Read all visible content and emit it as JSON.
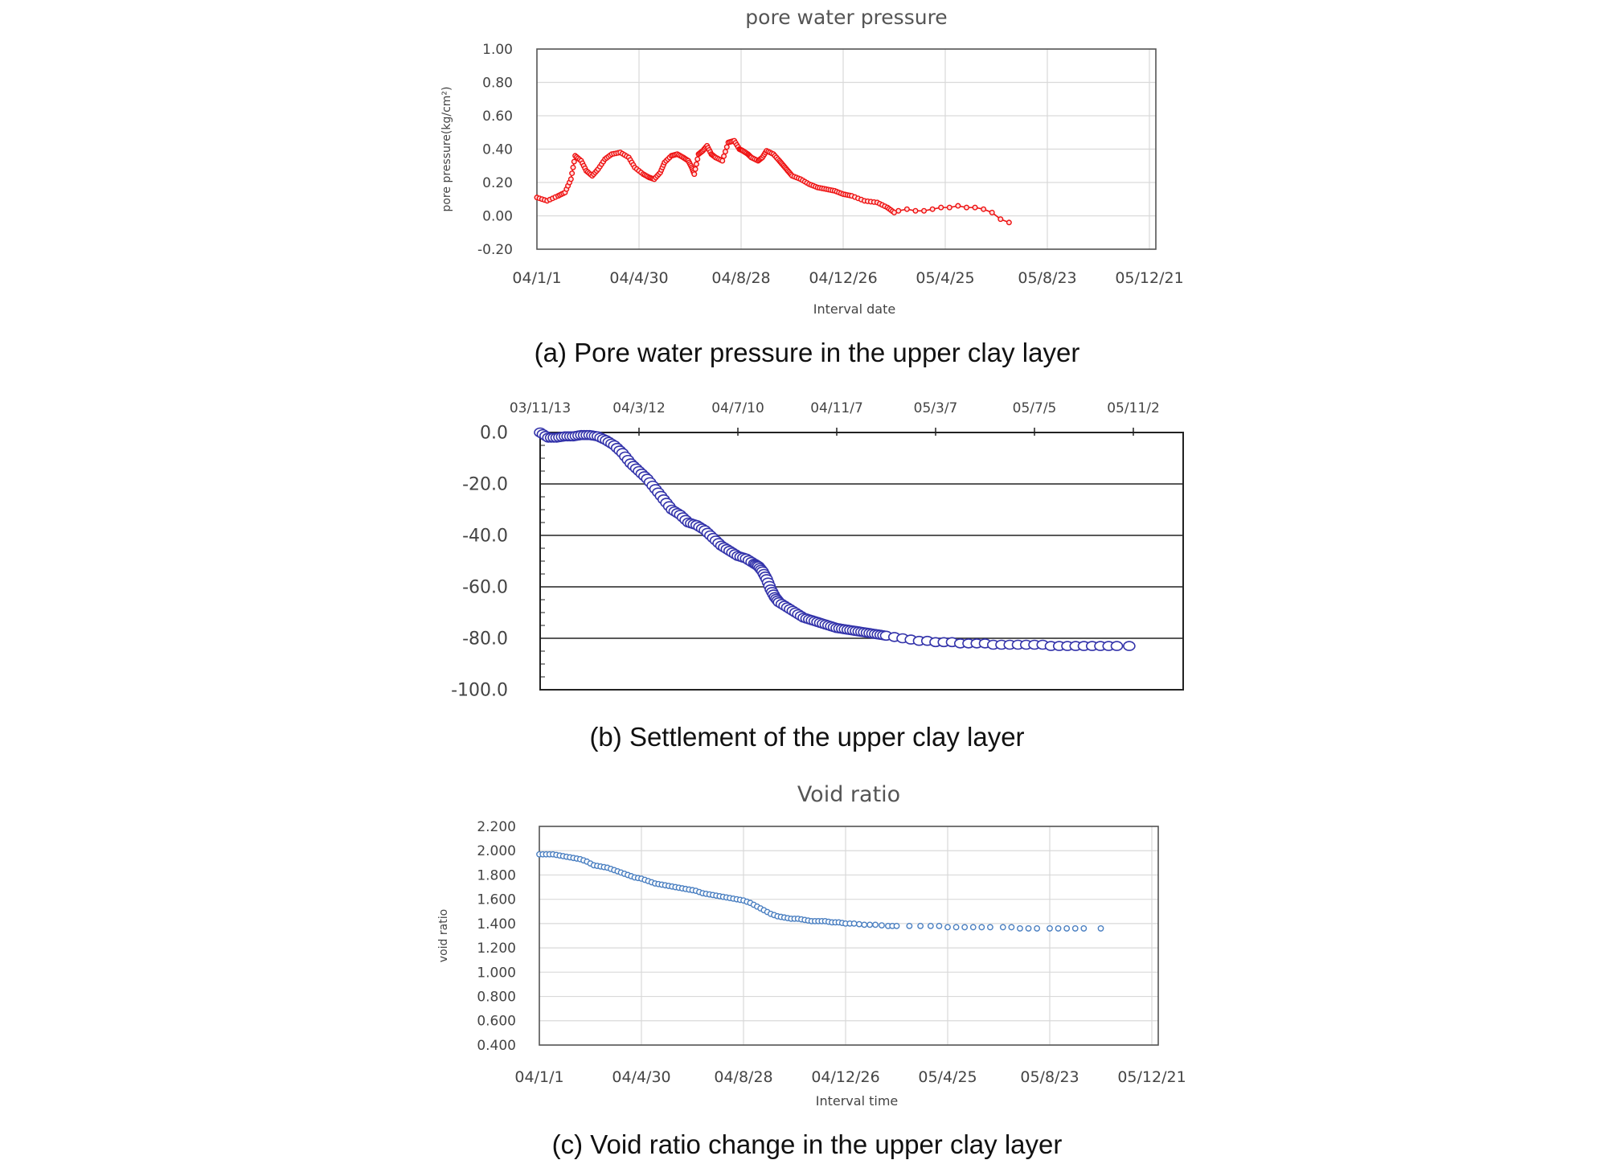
{
  "chart_data": [
    {
      "type": "scatter",
      "title": "pore water pressure",
      "xlabel": "Interval date",
      "ylabel": "pore pressure(kg/cm²)",
      "caption": "(a) Pore water pressure in the upper clay layer",
      "x_ticks": [
        "04/1/1",
        "04/4/30",
        "04/8/28",
        "04/12/26",
        "05/4/25",
        "05/8/23",
        "05/12/21"
      ],
      "y_ticks": [
        "1.00",
        "0.80",
        "0.60",
        "0.40",
        "0.20",
        "0.00",
        "-0.20"
      ],
      "ylim": [
        -0.2,
        1.0
      ],
      "xlim_days": [
        0,
        720
      ],
      "color": "#ee1111",
      "series": [
        {
          "name": "pore water pressure",
          "x_days": [
            0,
            12,
            25,
            33,
            40,
            45,
            52,
            58,
            65,
            72,
            80,
            88,
            98,
            108,
            115,
            125,
            132,
            138,
            145,
            150,
            158,
            165,
            172,
            178,
            182,
            185,
            190,
            195,
            200,
            205,
            210,
            218,
            225,
            232,
            238,
            242,
            248,
            252,
            260,
            265,
            270,
            278,
            285,
            290,
            295,
            300,
            310,
            320,
            330,
            340,
            350,
            360,
            370,
            385,
            400,
            412,
            420,
            425,
            435,
            445,
            455,
            465,
            475,
            485,
            495,
            505,
            515,
            525,
            535,
            545,
            555
          ],
          "values": [
            0.11,
            0.09,
            0.12,
            0.14,
            0.22,
            0.36,
            0.33,
            0.27,
            0.24,
            0.28,
            0.34,
            0.37,
            0.38,
            0.35,
            0.29,
            0.25,
            0.23,
            0.22,
            0.26,
            0.32,
            0.36,
            0.37,
            0.35,
            0.33,
            0.29,
            0.25,
            0.37,
            0.39,
            0.42,
            0.37,
            0.35,
            0.33,
            0.44,
            0.45,
            0.4,
            0.39,
            0.37,
            0.35,
            0.33,
            0.35,
            0.39,
            0.37,
            0.33,
            0.3,
            0.27,
            0.24,
            0.22,
            0.19,
            0.17,
            0.16,
            0.15,
            0.13,
            0.12,
            0.09,
            0.08,
            0.05,
            0.02,
            0.03,
            0.04,
            0.03,
            0.03,
            0.04,
            0.05,
            0.05,
            0.06,
            0.05,
            0.05,
            0.04,
            0.02,
            -0.02,
            -0.04
          ]
        }
      ]
    },
    {
      "type": "scatter",
      "title": "",
      "caption": "(b) Settlement of the upper clay layer",
      "x_ticks": [
        "03/11/13",
        "04/3/12",
        "04/7/10",
        "04/11/7",
        "05/3/7",
        "05/7/5",
        "05/11/2"
      ],
      "y_ticks": [
        "0.0",
        "-20.0",
        "-40.0",
        "-60.0",
        "-80.0",
        "-100.0"
      ],
      "ylim": [
        -100,
        0
      ],
      "xlim_days": [
        0,
        720
      ],
      "color": "#3333aa",
      "series": [
        {
          "name": "settlement",
          "x_days": [
            0,
            10,
            20,
            30,
            40,
            50,
            60,
            70,
            80,
            90,
            100,
            110,
            120,
            130,
            140,
            150,
            160,
            170,
            180,
            190,
            200,
            210,
            220,
            230,
            240,
            250,
            260,
            265,
            270,
            275,
            280,
            285,
            290,
            300,
            310,
            320,
            330,
            340,
            350,
            360,
            370,
            380,
            390,
            400,
            410,
            420,
            430,
            440,
            450,
            460,
            470,
            480,
            490,
            500,
            510,
            520,
            530,
            540,
            550,
            560,
            570,
            580,
            590,
            600,
            610,
            620,
            630,
            640,
            650,
            660,
            670,
            680,
            690,
            700,
            715
          ],
          "values": [
            0,
            -2,
            -2,
            -1.5,
            -1.5,
            -1,
            -1,
            -1.5,
            -3,
            -5,
            -8,
            -12,
            -15,
            -18,
            -22,
            -26,
            -30,
            -32,
            -35,
            -36,
            -38,
            -41,
            -44,
            -46,
            -48,
            -49,
            -51,
            -52,
            -54,
            -57,
            -61,
            -64,
            -66,
            -68,
            -70,
            -72,
            -73,
            -74,
            -75,
            -76,
            -76.5,
            -77,
            -77.5,
            -78,
            -78.5,
            -79,
            -79.5,
            -80,
            -80.5,
            -81,
            -81,
            -81.5,
            -81.5,
            -81.5,
            -82,
            -82,
            -82,
            -82,
            -82.5,
            -82.5,
            -82.5,
            -82.5,
            -82.5,
            -82.5,
            -82.5,
            -83,
            -83,
            -83,
            -83,
            -83,
            -83,
            -83,
            -83,
            -83,
            -83
          ]
        }
      ]
    },
    {
      "type": "scatter",
      "title": "Void ratio",
      "xlabel": "Interval time",
      "ylabel": "void ratio",
      "caption": "(c) Void ratio change in the upper clay layer",
      "x_ticks": [
        "04/1/1",
        "04/4/30",
        "04/8/28",
        "04/12/26",
        "05/4/25",
        "05/8/23",
        "05/12/21"
      ],
      "y_ticks": [
        "2.200",
        "2.000",
        "1.800",
        "1.600",
        "1.400",
        "1.200",
        "1.000",
        "0.800",
        "0.600",
        "0.400"
      ],
      "ylim": [
        0.4,
        2.2
      ],
      "xlim_days": [
        0,
        720
      ],
      "color": "#4a7fc1",
      "series": [
        {
          "name": "void ratio",
          "x_days": [
            0,
            8,
            16,
            24,
            32,
            40,
            48,
            56,
            64,
            72,
            80,
            88,
            96,
            104,
            112,
            120,
            128,
            136,
            144,
            152,
            160,
            168,
            176,
            184,
            192,
            200,
            208,
            216,
            224,
            232,
            240,
            248,
            256,
            264,
            272,
            280,
            288,
            296,
            304,
            312,
            320,
            328,
            336,
            344,
            352,
            360,
            370,
            382,
            395,
            410,
            420,
            435,
            448,
            460,
            470,
            480,
            490,
            500,
            510,
            520,
            530,
            545,
            555,
            565,
            575,
            585,
            600,
            610,
            620,
            630,
            640,
            660
          ],
          "values": [
            1.97,
            1.97,
            1.97,
            1.96,
            1.95,
            1.94,
            1.93,
            1.91,
            1.88,
            1.87,
            1.86,
            1.84,
            1.82,
            1.8,
            1.78,
            1.77,
            1.75,
            1.73,
            1.72,
            1.71,
            1.7,
            1.69,
            1.68,
            1.67,
            1.65,
            1.64,
            1.63,
            1.62,
            1.61,
            1.6,
            1.59,
            1.57,
            1.54,
            1.51,
            1.48,
            1.46,
            1.45,
            1.44,
            1.44,
            1.43,
            1.42,
            1.42,
            1.42,
            1.41,
            1.41,
            1.4,
            1.4,
            1.39,
            1.39,
            1.38,
            1.38,
            1.38,
            1.38,
            1.38,
            1.38,
            1.37,
            1.37,
            1.37,
            1.37,
            1.37,
            1.37,
            1.37,
            1.37,
            1.36,
            1.36,
            1.36,
            1.36,
            1.36,
            1.36,
            1.36,
            1.36,
            1.36
          ]
        }
      ]
    }
  ]
}
